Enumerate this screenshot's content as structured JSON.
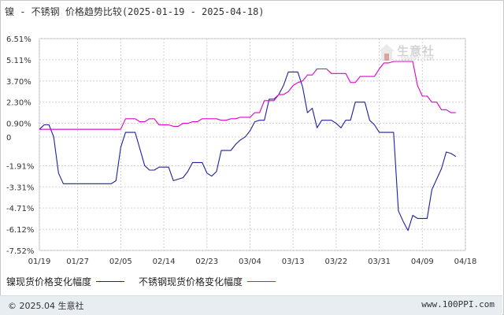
{
  "header": {
    "title": "镍 - 不锈钢 价格趋势比较(2025-01-19 - 2025-04-18)"
  },
  "watermark": {
    "brand": "生意社",
    "url": "100PPI.COM"
  },
  "legend": [
    {
      "label": "镍现货价格变化幅度",
      "color": "#1f1fa0"
    },
    {
      "label": "不锈钢现货价格变化幅度",
      "color": "#e000c8"
    }
  ],
  "footer": {
    "copyright": "© 2025.04 生意社",
    "site": "www.100PPI.com"
  },
  "chart_data": {
    "type": "line",
    "title": "镍 - 不锈钢 价格趋势比较(2025-01-19 - 2025-04-18)",
    "xlabel": "",
    "ylabel": "",
    "ylim": [
      -7.52,
      6.51
    ],
    "y_ticks": [
      "6.51%",
      "5.11%",
      "3.70%",
      "2.30%",
      "0.90%",
      "0",
      "-1.91%",
      "-3.31%",
      "-4.71%",
      "-6.12%",
      "-7.52%"
    ],
    "y_tick_values": [
      6.51,
      5.11,
      3.7,
      2.3,
      0.9,
      0,
      -1.91,
      -3.31,
      -4.71,
      -6.12,
      -7.52
    ],
    "x_ticks": [
      "01/19",
      "01/27",
      "02/05",
      "02/14",
      "02/23",
      "03/04",
      "03/13",
      "03/22",
      "03/31",
      "04/09",
      "04/18"
    ],
    "x_tick_days": [
      0,
      8,
      17,
      26,
      35,
      44,
      53,
      62,
      71,
      80,
      89
    ],
    "grid": true,
    "legend_position": "bottom",
    "series": [
      {
        "name": "镍现货价格变化幅度",
        "color": "#1f1fa0",
        "points": [
          [
            0,
            0.5
          ],
          [
            1,
            0.8
          ],
          [
            2,
            0.8
          ],
          [
            3,
            0.0
          ],
          [
            4,
            -2.4
          ],
          [
            5,
            -3.1
          ],
          [
            6,
            -3.1
          ],
          [
            7,
            -3.1
          ],
          [
            8,
            -3.1
          ],
          [
            9,
            -3.1
          ],
          [
            10,
            -3.1
          ],
          [
            11,
            -3.1
          ],
          [
            12,
            -3.1
          ],
          [
            13,
            -3.1
          ],
          [
            14,
            -3.1
          ],
          [
            15,
            -3.1
          ],
          [
            16,
            -2.9
          ],
          [
            17,
            -0.7
          ],
          [
            18,
            0.3
          ],
          [
            19,
            0.3
          ],
          [
            20,
            0.3
          ],
          [
            21,
            -0.8
          ],
          [
            22,
            -1.9
          ],
          [
            23,
            -2.2
          ],
          [
            24,
            -2.2
          ],
          [
            25,
            -2.0
          ],
          [
            26,
            -2.0
          ],
          [
            27,
            -2.0
          ],
          [
            28,
            -2.9
          ],
          [
            29,
            -2.8
          ],
          [
            30,
            -2.7
          ],
          [
            31,
            -2.3
          ],
          [
            32,
            -1.7
          ],
          [
            33,
            -1.7
          ],
          [
            34,
            -1.7
          ],
          [
            35,
            -2.4
          ],
          [
            36,
            -2.6
          ],
          [
            37,
            -2.3
          ],
          [
            38,
            -0.9
          ],
          [
            39,
            -0.9
          ],
          [
            40,
            -0.9
          ],
          [
            41,
            -0.5
          ],
          [
            42,
            -0.2
          ],
          [
            43,
            0.0
          ],
          [
            44,
            0.4
          ],
          [
            45,
            1.0
          ],
          [
            46,
            1.1
          ],
          [
            47,
            1.1
          ],
          [
            48,
            2.5
          ],
          [
            49,
            2.5
          ],
          [
            50,
            2.8
          ],
          [
            51,
            3.4
          ],
          [
            52,
            4.3
          ],
          [
            53,
            4.3
          ],
          [
            54,
            4.3
          ],
          [
            55,
            3.3
          ],
          [
            56,
            1.6
          ],
          [
            57,
            1.9
          ],
          [
            58,
            0.6
          ],
          [
            59,
            1.1
          ],
          [
            60,
            1.1
          ],
          [
            61,
            1.1
          ],
          [
            62,
            0.9
          ],
          [
            63,
            0.6
          ],
          [
            64,
            1.1
          ],
          [
            65,
            1.1
          ],
          [
            66,
            2.3
          ],
          [
            67,
            2.3
          ],
          [
            68,
            2.3
          ],
          [
            69,
            1.1
          ],
          [
            70,
            0.8
          ],
          [
            71,
            0.3
          ],
          [
            72,
            0.3
          ],
          [
            73,
            0.3
          ],
          [
            74,
            0.3
          ],
          [
            75,
            -4.9
          ],
          [
            76,
            -5.6
          ],
          [
            77,
            -6.2
          ],
          [
            78,
            -5.2
          ],
          [
            79,
            -5.4
          ],
          [
            80,
            -5.4
          ],
          [
            81,
            -5.4
          ],
          [
            82,
            -3.5
          ],
          [
            83,
            -2.8
          ],
          [
            84,
            -2.1
          ],
          [
            85,
            -1.0
          ],
          [
            86,
            -1.1
          ],
          [
            87,
            -1.3
          ]
        ]
      },
      {
        "name": "不锈钢现货价格变化幅度",
        "color": "#e000c8",
        "points": [
          [
            0,
            0.5
          ],
          [
            1,
            0.5
          ],
          [
            2,
            0.5
          ],
          [
            3,
            0.5
          ],
          [
            4,
            0.5
          ],
          [
            5,
            0.5
          ],
          [
            6,
            0.5
          ],
          [
            7,
            0.5
          ],
          [
            8,
            0.5
          ],
          [
            9,
            0.5
          ],
          [
            10,
            0.5
          ],
          [
            11,
            0.5
          ],
          [
            12,
            0.5
          ],
          [
            13,
            0.5
          ],
          [
            14,
            0.5
          ],
          [
            15,
            0.5
          ],
          [
            16,
            0.5
          ],
          [
            17,
            0.5
          ],
          [
            18,
            1.2
          ],
          [
            19,
            1.2
          ],
          [
            20,
            1.2
          ],
          [
            21,
            1.0
          ],
          [
            22,
            1.0
          ],
          [
            23,
            1.2
          ],
          [
            24,
            1.2
          ],
          [
            25,
            0.8
          ],
          [
            26,
            0.8
          ],
          [
            27,
            0.8
          ],
          [
            28,
            0.7
          ],
          [
            29,
            0.7
          ],
          [
            30,
            0.9
          ],
          [
            31,
            0.9
          ],
          [
            32,
            1.0
          ],
          [
            33,
            1.0
          ],
          [
            34,
            1.2
          ],
          [
            35,
            1.2
          ],
          [
            36,
            1.2
          ],
          [
            37,
            1.2
          ],
          [
            38,
            1.1
          ],
          [
            39,
            1.1
          ],
          [
            40,
            1.2
          ],
          [
            41,
            1.2
          ],
          [
            42,
            1.3
          ],
          [
            43,
            1.3
          ],
          [
            44,
            1.3
          ],
          [
            45,
            1.6
          ],
          [
            46,
            1.6
          ],
          [
            47,
            2.4
          ],
          [
            48,
            2.4
          ],
          [
            49,
            2.4
          ],
          [
            50,
            2.8
          ],
          [
            51,
            2.8
          ],
          [
            52,
            3.0
          ],
          [
            53,
            3.4
          ],
          [
            54,
            3.6
          ],
          [
            55,
            3.7
          ],
          [
            56,
            4.1
          ],
          [
            57,
            4.1
          ],
          [
            58,
            4.5
          ],
          [
            59,
            4.5
          ],
          [
            60,
            4.5
          ],
          [
            61,
            4.2
          ],
          [
            62,
            4.2
          ],
          [
            63,
            4.2
          ],
          [
            64,
            4.2
          ],
          [
            65,
            3.6
          ],
          [
            66,
            3.6
          ],
          [
            67,
            4.0
          ],
          [
            68,
            4.0
          ],
          [
            69,
            4.0
          ],
          [
            70,
            4.0
          ],
          [
            71,
            4.5
          ],
          [
            72,
            4.9
          ],
          [
            73,
            4.9
          ],
          [
            74,
            5.0
          ],
          [
            75,
            5.0
          ],
          [
            76,
            5.0
          ],
          [
            77,
            5.0
          ],
          [
            78,
            5.0
          ],
          [
            79,
            3.4
          ],
          [
            80,
            2.7
          ],
          [
            81,
            2.7
          ],
          [
            82,
            2.3
          ],
          [
            83,
            2.3
          ],
          [
            84,
            1.8
          ],
          [
            85,
            1.8
          ],
          [
            86,
            1.6
          ],
          [
            87,
            1.6
          ]
        ]
      }
    ]
  }
}
